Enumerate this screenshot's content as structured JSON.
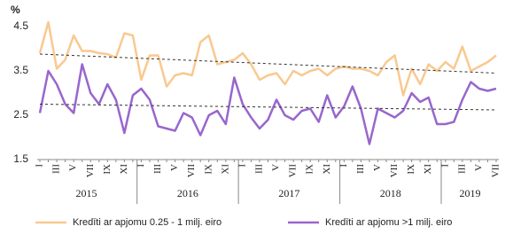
{
  "chart_data": {
    "type": "line",
    "y_label": "%",
    "categories": [
      "I",
      null,
      "III",
      null,
      "V",
      null,
      "VII",
      null,
      "IX",
      null,
      "XI",
      null,
      "I",
      null,
      "III",
      null,
      "V",
      null,
      "VII",
      null,
      "IX",
      null,
      "XI",
      null,
      "I",
      null,
      "III",
      null,
      "V",
      null,
      "VII",
      null,
      "IX",
      null,
      "XI",
      null,
      "I",
      null,
      "III",
      null,
      "V",
      null,
      "VII",
      null,
      "IX",
      null,
      "XI",
      null,
      "I",
      null,
      "III",
      null,
      "V",
      null,
      "VII"
    ],
    "years": [
      "2015",
      "2016",
      "2017",
      "2018",
      "2019"
    ],
    "series": [
      {
        "name": "Kredīti ar apjomu 0.25 - 1 milj. eiro",
        "color": "#f9c990",
        "values": [
          3.9,
          4.6,
          3.55,
          3.75,
          4.3,
          3.95,
          3.95,
          3.9,
          3.88,
          3.8,
          4.35,
          4.3,
          3.3,
          3.85,
          3.85,
          3.15,
          3.4,
          3.45,
          3.4,
          4.15,
          4.3,
          3.65,
          3.7,
          3.75,
          3.9,
          3.65,
          3.3,
          3.4,
          3.45,
          3.2,
          3.5,
          3.4,
          3.5,
          3.55,
          3.4,
          3.55,
          3.6,
          3.55,
          3.55,
          3.5,
          3.4,
          3.7,
          3.85,
          2.95,
          3.55,
          3.2,
          3.65,
          3.5,
          3.7,
          3.55,
          4.05,
          3.5,
          3.6,
          3.7,
          3.85
        ],
        "trend": [
          3.88,
          3.45
        ]
      },
      {
        "name": "Kredīti ar apjomu >1 milj. eiro",
        "color": "#9966cc",
        "values": [
          2.55,
          3.5,
          3.2,
          2.75,
          2.55,
          3.65,
          3.0,
          2.75,
          3.2,
          2.85,
          2.1,
          2.95,
          3.1,
          2.85,
          2.25,
          2.2,
          2.15,
          2.55,
          2.45,
          2.05,
          2.5,
          2.6,
          2.3,
          3.35,
          2.75,
          2.45,
          2.2,
          2.4,
          2.85,
          2.5,
          2.4,
          2.6,
          2.65,
          2.35,
          2.95,
          2.45,
          2.7,
          3.15,
          2.65,
          1.85,
          2.65,
          2.55,
          2.45,
          2.6,
          3.0,
          2.8,
          2.9,
          2.3,
          2.3,
          2.35,
          2.85,
          3.25,
          3.1,
          3.05,
          3.1
        ],
        "trend": [
          2.75,
          2.62
        ]
      }
    ],
    "ylim": [
      1.5,
      4.5
    ],
    "yticks": [
      1.5,
      2.5,
      3.5,
      4.5
    ],
    "trend_color": "#333333"
  }
}
